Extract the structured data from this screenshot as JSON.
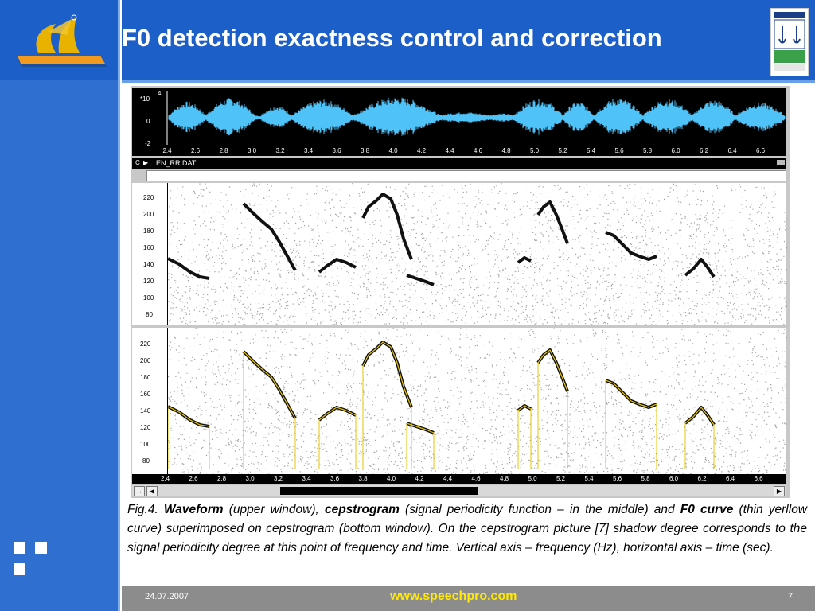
{
  "slide": {
    "title": "F0 detection exactness control and correction",
    "date": "24.07.2007",
    "url": "www.speechpro.com",
    "page_number": "7"
  },
  "figure": {
    "file_label": "EN_RR.DAT",
    "corner_letter": "C",
    "waveform": {
      "y_scale": "*10",
      "y_scale_exp": "4",
      "y_ticks": [
        "0",
        "-2"
      ],
      "color": "#4fc3f7",
      "background": "#000000"
    },
    "time_ticks": [
      "2.4",
      "2.6",
      "2.8",
      "3.0",
      "3.2",
      "3.4",
      "3.6",
      "3.8",
      "4.0",
      "4.2",
      "4.4",
      "4.6",
      "4.8",
      "5.0",
      "5.2",
      "5.4",
      "5.6",
      "5.8",
      "6.0",
      "6.2",
      "6.4",
      "6.6"
    ],
    "freq_ticks": [
      "220",
      "200",
      "180",
      "160",
      "140",
      "120",
      "100",
      "80"
    ],
    "f0_curve_color": "#e8c400"
  },
  "caption": {
    "prefix": "Fig.4. ",
    "term1": "Waveform",
    "text1": " (upper window), ",
    "term2": "cepstrogram",
    "text2": "  (signal periodicity function – in the middle) and ",
    "term3": "F0 curve",
    "text3": " (thin yerllow  curve)  superimposed  on cepstrogram (bottom window). On the cepstrogram picture [7] shadow degree corresponds to the signal periodicity degree at this point of frequency and time. Vertical axis – frequency (Hz), horizontal axis – time (sec)."
  }
}
